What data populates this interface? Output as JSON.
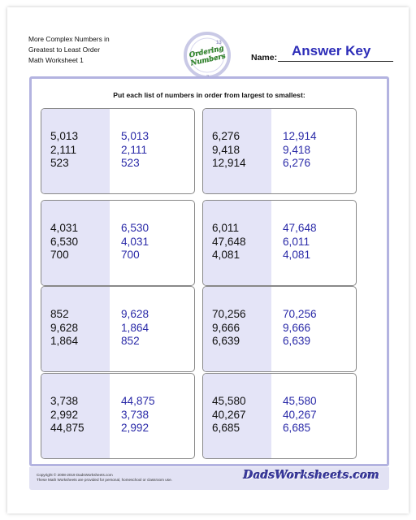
{
  "header": {
    "title_lines": [
      "More Complex Numbers in",
      "Greatest to Least Order",
      "Math Worksheet 1"
    ],
    "name_label": "Name:",
    "answer_key": "Answer Key",
    "badge": {
      "top_text": "Ordering",
      "bottom_text": "Numbers",
      "digit_top": "13",
      "digit_bottom": "7",
      "colors": {
        "ring": "#c9c9e6",
        "inner": "#ffffff",
        "green": "#3f9a3a"
      }
    }
  },
  "instructions": "Put each list of numbers in order from largest to smallest:",
  "problems": [
    {
      "given": [
        "5,013",
        "2,111",
        "523"
      ],
      "answer": [
        "5,013",
        "2,111",
        "523"
      ]
    },
    {
      "given": [
        "6,276",
        "9,418",
        "12,914"
      ],
      "answer": [
        "12,914",
        "9,418",
        "6,276"
      ]
    },
    {
      "given": [
        "4,031",
        "6,530",
        "700"
      ],
      "answer": [
        "6,530",
        "4,031",
        "700"
      ]
    },
    {
      "given": [
        "6,011",
        "47,648",
        "4,081"
      ],
      "answer": [
        "47,648",
        "6,011",
        "4,081"
      ]
    },
    {
      "given": [
        "852",
        "9,628",
        "1,864"
      ],
      "answer": [
        "9,628",
        "1,864",
        "852"
      ]
    },
    {
      "given": [
        "70,256",
        "9,666",
        "6,639"
      ],
      "answer": [
        "70,256",
        "9,666",
        "6,639"
      ]
    },
    {
      "given": [
        "3,738",
        "2,992",
        "44,875"
      ],
      "answer": [
        "44,875",
        "3,738",
        "2,992"
      ]
    },
    {
      "given": [
        "45,580",
        "40,267",
        "6,685"
      ],
      "answer": [
        "45,580",
        "40,267",
        "6,685"
      ]
    }
  ],
  "footer": {
    "copyright_lines": [
      "Copyright © 2008-2019 DadsWorksheets.com",
      "These Math Worksheets are provided for personal, homeschool or classroom use."
    ],
    "logo": "DadsWorksheets.com"
  },
  "colors": {
    "frame_border": "#b3b3e0",
    "shade": "#e4e4f7",
    "answer": "#2a2aa8"
  }
}
